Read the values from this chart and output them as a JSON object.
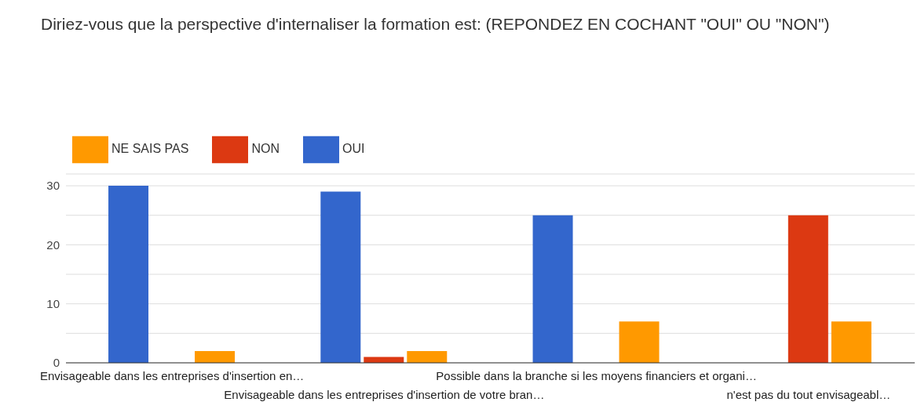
{
  "chart_data": {
    "type": "bar",
    "title": "Diriez-vous que  la perspective d'internaliser la formation est: (REPONDEZ EN COCHANT \"OUI\" OU \"NON\")",
    "categories": [
      "Envisageable dans les entreprises d'insertion en…",
      "Envisageable dans les entreprises d'insertion de votre bran…",
      "Possible dans la branche si les moyens financiers et organi…",
      "n'est pas du tout envisageabl…"
    ],
    "series": [
      {
        "name": "OUI",
        "color": "#3366cc",
        "values": [
          30,
          29,
          25,
          0
        ]
      },
      {
        "name": "NON",
        "color": "#dc3912",
        "values": [
          0,
          1,
          0,
          25
        ]
      },
      {
        "name": "NE SAIS PAS",
        "color": "#ff9900",
        "values": [
          2,
          2,
          7,
          7
        ]
      }
    ],
    "ylim": [
      0,
      32
    ],
    "yticks": [
      0,
      {
        "value": 5,
        "label": null
      },
      10,
      {
        "value": 15,
        "label": null
      },
      20,
      {
        "value": 25,
        "label": null
      },
      30
    ],
    "grid": "y",
    "legend": "top left"
  }
}
